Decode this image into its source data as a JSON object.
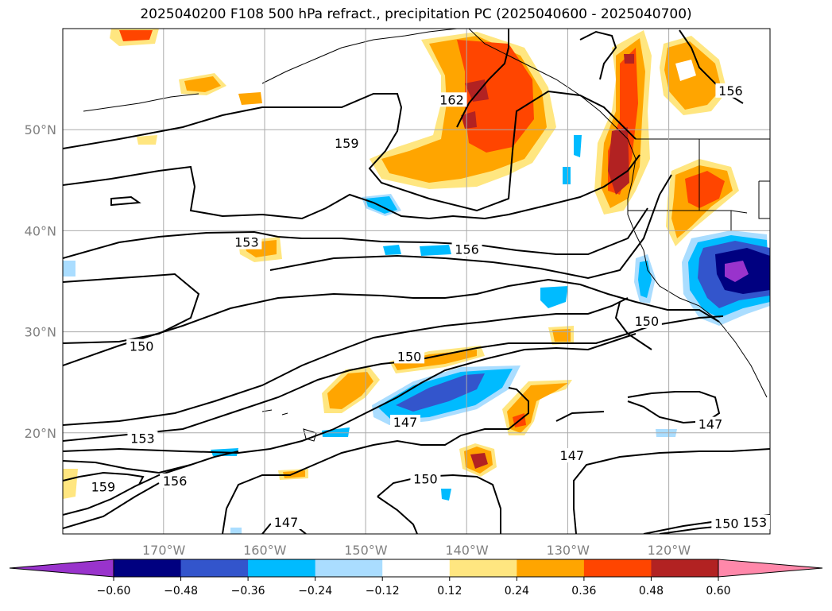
{
  "title": "2025040200 F108 500 hPa refract., precipitation PC (2025040600 - 2025040700)",
  "map": {
    "lon_range": [
      -180,
      -110
    ],
    "lat_range": [
      10,
      60
    ],
    "lon_ticks": [
      {
        "lon": -170,
        "label": "170°W"
      },
      {
        "lon": -160,
        "label": "160°W"
      },
      {
        "lon": -150,
        "label": "150°W"
      },
      {
        "lon": -140,
        "label": "140°W"
      },
      {
        "lon": -130,
        "label": "130°W"
      },
      {
        "lon": -120,
        "label": "120°W"
      }
    ],
    "lat_ticks": [
      {
        "lat": 50,
        "label": "50°N"
      },
      {
        "lat": 40,
        "label": "40°N"
      },
      {
        "lat": 30,
        "label": "30°N"
      },
      {
        "lat": 20,
        "label": "20°N"
      }
    ],
    "grid": true,
    "contour_labels": [
      {
        "text": "162",
        "lon": -141.5,
        "lat": 52.9
      },
      {
        "text": "159",
        "lon": -151.9,
        "lat": 48.6
      },
      {
        "text": "156",
        "lon": -113.9,
        "lat": 53.8
      },
      {
        "text": "153",
        "lon": -161.8,
        "lat": 38.8
      },
      {
        "text": "156",
        "lon": -140.0,
        "lat": 38.1
      },
      {
        "text": "150",
        "lon": -172.2,
        "lat": 28.5
      },
      {
        "text": "150",
        "lon": -122.2,
        "lat": 31.0
      },
      {
        "text": "150",
        "lon": -145.7,
        "lat": 27.5
      },
      {
        "text": "147",
        "lon": -146.1,
        "lat": 21.0
      },
      {
        "text": "147",
        "lon": -115.9,
        "lat": 20.8
      },
      {
        "text": "147",
        "lon": -129.6,
        "lat": 17.7
      },
      {
        "text": "153",
        "lon": -172.1,
        "lat": 19.4
      },
      {
        "text": "159",
        "lon": -176.0,
        "lat": 14.6
      },
      {
        "text": "156",
        "lon": -168.9,
        "lat": 15.2
      },
      {
        "text": "150",
        "lon": -144.1,
        "lat": 15.4
      },
      {
        "text": "147",
        "lon": -157.9,
        "lat": 11.1
      },
      {
        "text": "150",
        "lon": -114.3,
        "lat": 11.0
      },
      {
        "text": "153",
        "lon": -111.5,
        "lat": 11.1
      }
    ]
  },
  "colorbar": {
    "ticks": [
      "−0.60",
      "−0.48",
      "−0.36",
      "−0.24",
      "−0.12",
      "0.12",
      "0.24",
      "0.36",
      "0.48",
      "0.60"
    ],
    "colors": [
      "#9933cc",
      "#000080",
      "#3355cc",
      "#00bbff",
      "#aaddff",
      "#ffffff",
      "#ffe680",
      "#ffa500",
      "#ff4500",
      "#b22222",
      "#ff88aa",
      "#ff88aa"
    ]
  }
}
